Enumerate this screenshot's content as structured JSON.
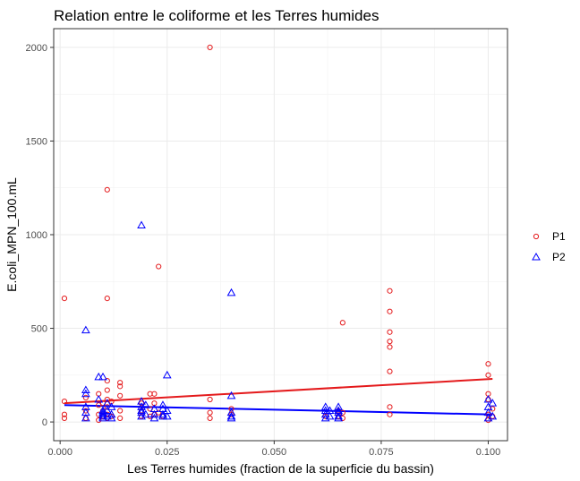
{
  "chart_data": {
    "type": "scatter",
    "title": "Relation entre le coliforme et les Terres humides",
    "xlabel": "Les Terres humides (fraction de la superficie du bassin)",
    "ylabel": "E.coli_MPN_100.mL",
    "xlim": [
      -0.0015,
      0.1045
    ],
    "ylim": [
      -100,
      2100
    ],
    "xticks": [
      0.0,
      0.025,
      0.05,
      0.075,
      0.1
    ],
    "xtick_labels": [
      "0.000",
      "0.025",
      "0.050",
      "0.075",
      "0.100"
    ],
    "yticks": [
      0,
      500,
      1000,
      1500,
      2000
    ],
    "ytick_labels": [
      "0",
      "500",
      "1000",
      "1500",
      "2000"
    ],
    "grid": true,
    "legend_position": "right",
    "series": [
      {
        "name": "P1",
        "marker": "circle",
        "color": "#e41a1c",
        "points": [
          [
            0.001,
            660
          ],
          [
            0.001,
            110
          ],
          [
            0.001,
            40
          ],
          [
            0.001,
            20
          ],
          [
            0.006,
            130
          ],
          [
            0.006,
            60
          ],
          [
            0.006,
            20
          ],
          [
            0.009,
            150
          ],
          [
            0.009,
            90
          ],
          [
            0.009,
            40
          ],
          [
            0.009,
            10
          ],
          [
            0.01,
            100
          ],
          [
            0.01,
            60
          ],
          [
            0.01,
            30
          ],
          [
            0.011,
            1240
          ],
          [
            0.011,
            660
          ],
          [
            0.011,
            220
          ],
          [
            0.011,
            170
          ],
          [
            0.011,
            120
          ],
          [
            0.011,
            80
          ],
          [
            0.011,
            40
          ],
          [
            0.011,
            20
          ],
          [
            0.012,
            110
          ],
          [
            0.012,
            30
          ],
          [
            0.014,
            210
          ],
          [
            0.014,
            190
          ],
          [
            0.014,
            140
          ],
          [
            0.014,
            60
          ],
          [
            0.014,
            20
          ],
          [
            0.019,
            100
          ],
          [
            0.019,
            60
          ],
          [
            0.019,
            30
          ],
          [
            0.021,
            150
          ],
          [
            0.021,
            70
          ],
          [
            0.021,
            30
          ],
          [
            0.022,
            150
          ],
          [
            0.022,
            100
          ],
          [
            0.022,
            40
          ],
          [
            0.023,
            830
          ],
          [
            0.023,
            50
          ],
          [
            0.024,
            30
          ],
          [
            0.035,
            2000
          ],
          [
            0.035,
            120
          ],
          [
            0.035,
            50
          ],
          [
            0.035,
            20
          ],
          [
            0.04,
            70
          ],
          [
            0.04,
            40
          ],
          [
            0.062,
            30
          ],
          [
            0.065,
            60
          ],
          [
            0.065,
            30
          ],
          [
            0.066,
            530
          ],
          [
            0.066,
            50
          ],
          [
            0.066,
            20
          ],
          [
            0.077,
            700
          ],
          [
            0.077,
            590
          ],
          [
            0.077,
            480
          ],
          [
            0.077,
            430
          ],
          [
            0.077,
            400
          ],
          [
            0.077,
            270
          ],
          [
            0.077,
            80
          ],
          [
            0.077,
            40
          ],
          [
            0.1,
            310
          ],
          [
            0.1,
            250
          ],
          [
            0.1,
            150
          ],
          [
            0.1,
            120
          ],
          [
            0.1,
            40
          ],
          [
            0.1,
            10
          ],
          [
            0.101,
            70
          ],
          [
            0.101,
            30
          ]
        ],
        "trend": {
          "x": [
            0.001,
            0.101
          ],
          "y": [
            100,
            230
          ]
        }
      },
      {
        "name": "P2",
        "marker": "triangle",
        "color": "#0000ff",
        "points": [
          [
            0.006,
            490
          ],
          [
            0.006,
            170
          ],
          [
            0.006,
            150
          ],
          [
            0.006,
            80
          ],
          [
            0.006,
            50
          ],
          [
            0.006,
            20
          ],
          [
            0.009,
            240
          ],
          [
            0.009,
            120
          ],
          [
            0.01,
            240
          ],
          [
            0.01,
            60
          ],
          [
            0.01,
            50
          ],
          [
            0.01,
            40
          ],
          [
            0.01,
            30
          ],
          [
            0.01,
            20
          ],
          [
            0.011,
            100
          ],
          [
            0.011,
            60
          ],
          [
            0.011,
            30
          ],
          [
            0.012,
            80
          ],
          [
            0.012,
            40
          ],
          [
            0.012,
            20
          ],
          [
            0.019,
            1050
          ],
          [
            0.019,
            110
          ],
          [
            0.019,
            80
          ],
          [
            0.019,
            60
          ],
          [
            0.019,
            50
          ],
          [
            0.019,
            30
          ],
          [
            0.02,
            90
          ],
          [
            0.02,
            40
          ],
          [
            0.022,
            70
          ],
          [
            0.022,
            40
          ],
          [
            0.022,
            20
          ],
          [
            0.024,
            90
          ],
          [
            0.024,
            70
          ],
          [
            0.024,
            40
          ],
          [
            0.024,
            30
          ],
          [
            0.025,
            250
          ],
          [
            0.025,
            60
          ],
          [
            0.025,
            30
          ],
          [
            0.04,
            690
          ],
          [
            0.04,
            140
          ],
          [
            0.04,
            50
          ],
          [
            0.04,
            30
          ],
          [
            0.04,
            20
          ],
          [
            0.062,
            80
          ],
          [
            0.062,
            60
          ],
          [
            0.062,
            40
          ],
          [
            0.062,
            20
          ],
          [
            0.063,
            60
          ],
          [
            0.063,
            30
          ],
          [
            0.065,
            80
          ],
          [
            0.065,
            60
          ],
          [
            0.065,
            50
          ],
          [
            0.065,
            30
          ],
          [
            0.065,
            20
          ],
          [
            0.1,
            120
          ],
          [
            0.1,
            80
          ],
          [
            0.1,
            50
          ],
          [
            0.1,
            20
          ],
          [
            0.101,
            100
          ],
          [
            0.101,
            30
          ]
        ],
        "trend": {
          "x": [
            0.001,
            0.101
          ],
          "y": [
            90,
            40
          ]
        }
      }
    ]
  }
}
